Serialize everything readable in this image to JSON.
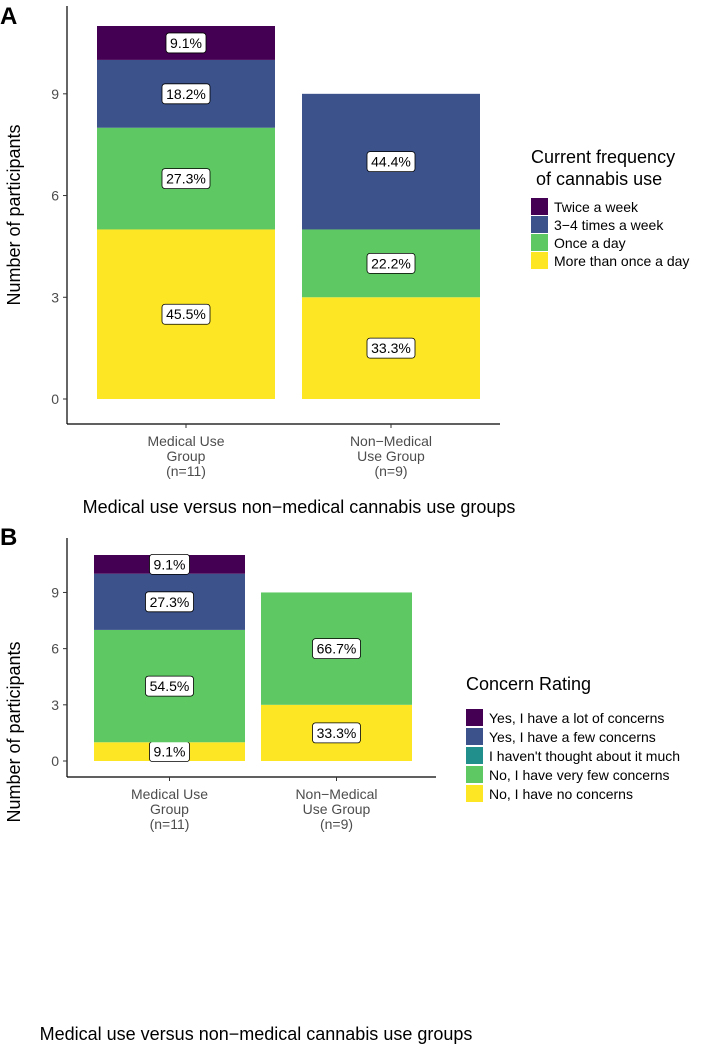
{
  "chart_data": [
    {
      "type": "bar",
      "stacked": true,
      "panel_label": "A",
      "categories": [
        [
          "Medical Use",
          "Group",
          "(n=11)"
        ],
        [
          "Non−Medical",
          "Use Group",
          "(n=9)"
        ]
      ],
      "xlabel": "Medical use versus non−medical cannabis use groups",
      "ylabel": "Number of participants",
      "ylim": [
        0,
        11
      ],
      "yticks": [
        0,
        3,
        6,
        9
      ],
      "grid": false,
      "legend_title": [
        "Current frequency",
        " of cannabis use"
      ],
      "legend_position": "right",
      "series": [
        {
          "name": "More than once a day",
          "color": "#FDE725",
          "values": [
            5,
            3
          ],
          "labels": [
            "45.5%",
            "33.3%"
          ]
        },
        {
          "name": "Once a day",
          "color": "#5EC962",
          "values": [
            3,
            2
          ],
          "labels": [
            "27.3%",
            "22.2%"
          ]
        },
        {
          "name": "3−4 times a week",
          "color": "#3B528B",
          "values": [
            2,
            4
          ],
          "labels": [
            "18.2%",
            "44.4%"
          ]
        },
        {
          "name": "Twice a week",
          "color": "#440154",
          "values": [
            1,
            0
          ],
          "labels": [
            "9.1%",
            ""
          ]
        }
      ]
    },
    {
      "type": "bar",
      "stacked": true,
      "panel_label": "B",
      "categories": [
        [
          "Medical Use",
          "Group",
          "(n=11)"
        ],
        [
          "Non−Medical",
          "Use Group",
          "(n=9)"
        ]
      ],
      "xlabel": "Medical use versus non−medical cannabis use groups",
      "ylabel": "Number of participants",
      "ylim": [
        0,
        11
      ],
      "yticks": [
        0,
        3,
        6,
        9
      ],
      "grid": false,
      "legend_title": [
        "Concern Rating"
      ],
      "legend_position": "right",
      "series": [
        {
          "name": "No, I have no concerns",
          "color": "#FDE725",
          "values": [
            1,
            3
          ],
          "labels": [
            "9.1%",
            "33.3%"
          ]
        },
        {
          "name": "No, I have very few concerns",
          "color": "#5EC962",
          "values": [
            6,
            6
          ],
          "labels": [
            "54.5%",
            "66.7%"
          ]
        },
        {
          "name": "I haven't thought about it much",
          "color": "#21908C",
          "values": [
            0,
            0
          ],
          "labels": [
            "",
            ""
          ]
        },
        {
          "name": "Yes, I have a few concerns",
          "color": "#3B528B",
          "values": [
            3,
            0
          ],
          "labels": [
            "27.3%",
            ""
          ]
        },
        {
          "name": "Yes, I have a lot of concerns",
          "color": "#440154",
          "values": [
            1,
            0
          ],
          "labels": [
            "9.1%",
            ""
          ]
        }
      ]
    }
  ]
}
